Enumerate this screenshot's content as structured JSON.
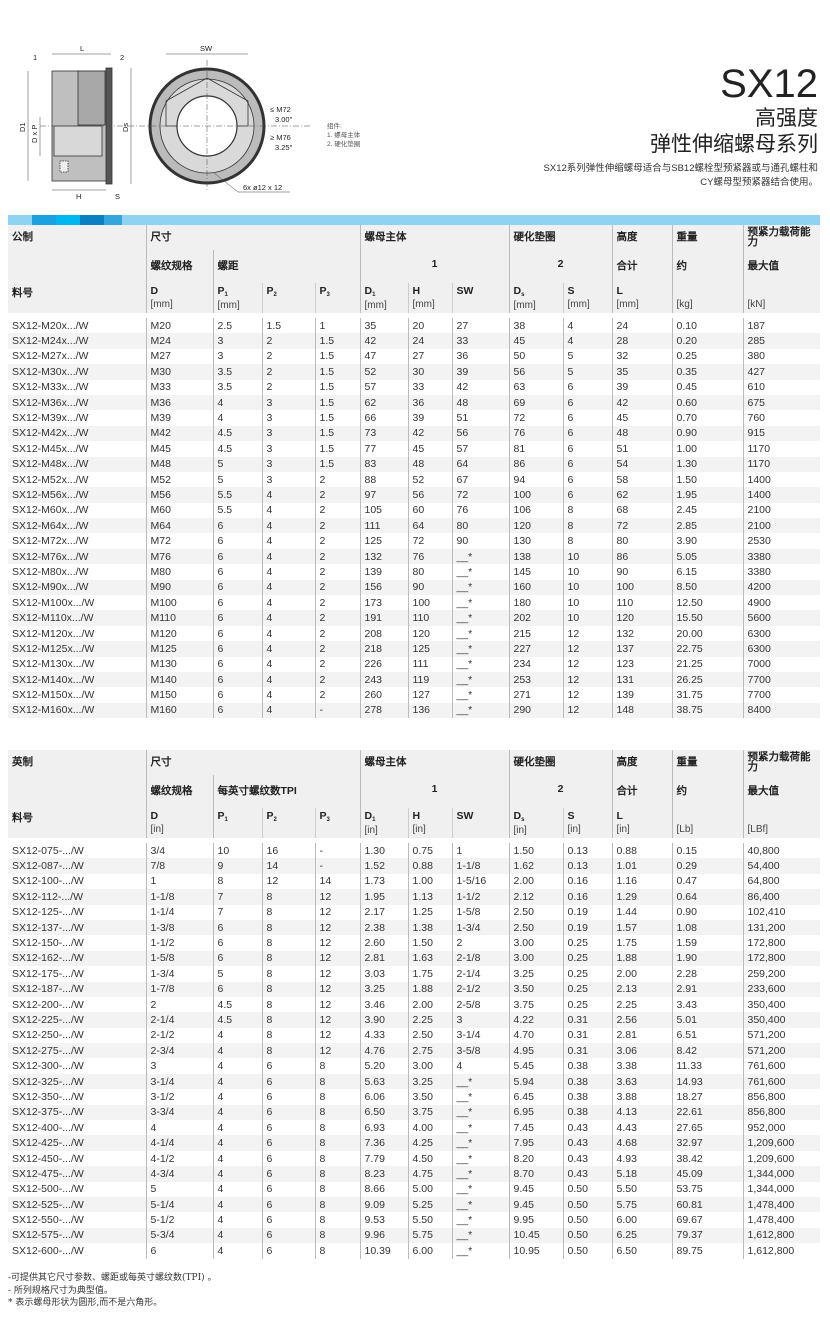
{
  "drawing": {
    "labels": {
      "L": "L",
      "SW": "SW",
      "H": "H",
      "S": "S",
      "D1": "D1",
      "DxP": "D x P",
      "Ds": "Ds",
      "part1": "1",
      "part2": "2",
      "m72": "≤ M72",
      "in300": "3.00\"",
      "m76": "≥ M76",
      "in325": "3.25\"",
      "holes": "6x  ø12 x 12"
    }
  },
  "legend": {
    "title": "组件:",
    "items": [
      "1. 螺母主体",
      "2. 硬化垫圈"
    ]
  },
  "title": {
    "code": "SX12",
    "line1": "高强度",
    "line2": "弹性伸缩螺母系列",
    "desc1": "SX12系列弹性伸缩螺母适合与SB12螺栓型预紧器或与通孔螺柱和",
    "desc2": "CY螺母型预紧器结合使用。"
  },
  "colors": {
    "accent_bar": "#8fd3f2",
    "blocks": [
      "#1aa1e0",
      "#00b8f0",
      "#0a7fc2",
      "#35a6dc"
    ]
  },
  "metric": {
    "h_system": "公制",
    "h_size": "尺寸",
    "h_body": "螺母主体",
    "h_washer": "硬化垫圈",
    "h_height": "高度",
    "h_weight": "重量",
    "h_load": "预紧力载荷能力",
    "h_thread": "螺纹规格",
    "h_pitch": "螺距",
    "h_body_no": "1",
    "h_washer_no": "2",
    "h_total": "合计",
    "h_approx": "约",
    "h_max": "最大值",
    "h_part": "料号",
    "cols": [
      "D",
      "P",
      "P",
      "P",
      "D",
      "H",
      "SW",
      "D",
      "S",
      "L"
    ],
    "units": {
      "D": "[mm]",
      "P1": "[mm]",
      "D1": "[mm]",
      "H": "[mm]",
      "Ds": "[mm]",
      "S": "[mm]",
      "L": "[mm]",
      "w": "[kg]",
      "f": "[kN]"
    },
    "rows": [
      [
        "SX12-M20x.../W",
        "M20",
        "2.5",
        "1.5",
        "1",
        "35",
        "20",
        "27",
        "38",
        "4",
        "24",
        "0.10",
        "187"
      ],
      [
        "SX12-M24x.../W",
        "M24",
        "3",
        "2",
        "1.5",
        "42",
        "24",
        "33",
        "45",
        "4",
        "28",
        "0.20",
        "285"
      ],
      [
        "SX12-M27x.../W",
        "M27",
        "3",
        "2",
        "1.5",
        "47",
        "27",
        "36",
        "50",
        "5",
        "32",
        "0.25",
        "380"
      ],
      [
        "SX12-M30x.../W",
        "M30",
        "3.5",
        "2",
        "1.5",
        "52",
        "30",
        "39",
        "56",
        "5",
        "35",
        "0.35",
        "427"
      ],
      [
        "SX12-M33x.../W",
        "M33",
        "3.5",
        "2",
        "1.5",
        "57",
        "33",
        "42",
        "63",
        "6",
        "39",
        "0.45",
        "610"
      ],
      [
        "SX12-M36x.../W",
        "M36",
        "4",
        "3",
        "1.5",
        "62",
        "36",
        "48",
        "69",
        "6",
        "42",
        "0.60",
        "675"
      ],
      [
        "SX12-M39x.../W",
        "M39",
        "4",
        "3",
        "1.5",
        "66",
        "39",
        "51",
        "72",
        "6",
        "45",
        "0.70",
        "760"
      ],
      [
        "SX12-M42x.../W",
        "M42",
        "4.5",
        "3",
        "1.5",
        "73",
        "42",
        "56",
        "76",
        "6",
        "48",
        "0.90",
        "915"
      ],
      [
        "SX12-M45x.../W",
        "M45",
        "4.5",
        "3",
        "1.5",
        "77",
        "45",
        "57",
        "81",
        "6",
        "51",
        "1.00",
        "1170"
      ],
      [
        "SX12-M48x.../W",
        "M48",
        "5",
        "3",
        "1.5",
        "83",
        "48",
        "64",
        "86",
        "6",
        "54",
        "1.30",
        "1170"
      ],
      [
        "SX12-M52x.../W",
        "M52",
        "5",
        "3",
        "2",
        "88",
        "52",
        "67",
        "94",
        "6",
        "58",
        "1.50",
        "1400"
      ],
      [
        "SX12-M56x.../W",
        "M56",
        "5.5",
        "4",
        "2",
        "97",
        "56",
        "72",
        "100",
        "6",
        "62",
        "1.95",
        "1400"
      ],
      [
        "SX12-M60x.../W",
        "M60",
        "5.5",
        "4",
        "2",
        "105",
        "60",
        "76",
        "106",
        "8",
        "68",
        "2.45",
        "2100"
      ],
      [
        "SX12-M64x.../W",
        "M64",
        "6",
        "4",
        "2",
        "111",
        "64",
        "80",
        "120",
        "8",
        "72",
        "2.85",
        "2100"
      ],
      [
        "SX12-M72x.../W",
        "M72",
        "6",
        "4",
        "2",
        "125",
        "72",
        "90",
        "130",
        "8",
        "80",
        "3.90",
        "2530"
      ],
      [
        "SX12-M76x.../W",
        "M76",
        "6",
        "4",
        "2",
        "132",
        "76",
        "__*",
        "138",
        "10",
        "86",
        "5.05",
        "3380"
      ],
      [
        "SX12-M80x.../W",
        "M80",
        "6",
        "4",
        "2",
        "139",
        "80",
        "__*",
        "145",
        "10",
        "90",
        "6.15",
        "3380"
      ],
      [
        "SX12-M90x.../W",
        "M90",
        "6",
        "4",
        "2",
        "156",
        "90",
        "__*",
        "160",
        "10",
        "100",
        "8.50",
        "4200"
      ],
      [
        "SX12-M100x.../W",
        "M100",
        "6",
        "4",
        "2",
        "173",
        "100",
        "__*",
        "180",
        "10",
        "110",
        "12.50",
        "4900"
      ],
      [
        "SX12-M110x.../W",
        "M110",
        "6",
        "4",
        "2",
        "191",
        "110",
        "__*",
        "202",
        "10",
        "120",
        "15.50",
        "5600"
      ],
      [
        "SX12-M120x.../W",
        "M120",
        "6",
        "4",
        "2",
        "208",
        "120",
        "__*",
        "215",
        "12",
        "132",
        "20.00",
        "6300"
      ],
      [
        "SX12-M125x.../W",
        "M125",
        "6",
        "4",
        "2",
        "218",
        "125",
        "__*",
        "227",
        "12",
        "137",
        "22.75",
        "6300"
      ],
      [
        "SX12-M130x.../W",
        "M130",
        "6",
        "4",
        "2",
        "226",
        "111",
        "__*",
        "234",
        "12",
        "123",
        "21.25",
        "7000"
      ],
      [
        "SX12-M140x.../W",
        "M140",
        "6",
        "4",
        "2",
        "243",
        "119",
        "__*",
        "253",
        "12",
        "131",
        "26.25",
        "7700"
      ],
      [
        "SX12-M150x.../W",
        "M150",
        "6",
        "4",
        "2",
        "260",
        "127",
        "__*",
        "271",
        "12",
        "139",
        "31.75",
        "7700"
      ],
      [
        "SX12-M160x.../W",
        "M160",
        "6",
        "4",
        "-",
        "278",
        "136",
        "__*",
        "290",
        "12",
        "148",
        "38.75",
        "8400"
      ]
    ]
  },
  "imperial": {
    "h_system": "英制",
    "h_size": "尺寸",
    "h_body": "螺母主体",
    "h_washer": "硬化垫圈",
    "h_height": "高度",
    "h_weight": "重量",
    "h_load": "预紧力载荷能力",
    "h_thread": "螺纹规格",
    "h_pitch": "每英寸螺纹数TPI",
    "h_body_no": "1",
    "h_washer_no": "2",
    "h_total": "合计",
    "h_approx": "约",
    "h_max": "最大值",
    "h_part": "料号",
    "cols": [
      "D",
      "P",
      "P",
      "P",
      "D",
      "H",
      "SW",
      "D",
      "S",
      "L"
    ],
    "units": {
      "D": "[in]",
      "P1": "",
      "D1": "[in]",
      "H": "[in]",
      "Ds": "[in]",
      "S": "[in]",
      "L": "[in]",
      "w": "[Lb]",
      "f": "[LBf]"
    },
    "rows": [
      [
        "SX12-075-.../W",
        "3/4",
        "10",
        "16",
        "-",
        "1.30",
        "0.75",
        "1",
        "1.50",
        "0.13",
        "0.88",
        "0.15",
        "40,800"
      ],
      [
        "SX12-087-.../W",
        "7/8",
        "9",
        "14",
        "-",
        "1.52",
        "0.88",
        "1-1/8",
        "1.62",
        "0.13",
        "1.01",
        "0.29",
        "54,400"
      ],
      [
        "SX12-100-.../W",
        "1",
        "8",
        "12",
        "14",
        "1.73",
        "1.00",
        "1-5/16",
        "2.00",
        "0.16",
        "1.16",
        "0.47",
        "64,800"
      ],
      [
        "SX12-112-.../W",
        "1-1/8",
        "7",
        "8",
        "12",
        "1.95",
        "1.13",
        "1-1/2",
        "2.12",
        "0.16",
        "1.29",
        "0.64",
        "86,400"
      ],
      [
        "SX12-125-.../W",
        "1-1/4",
        "7",
        "8",
        "12",
        "2.17",
        "1.25",
        "1-5/8",
        "2.50",
        "0.19",
        "1.44",
        "0.90",
        "102,410"
      ],
      [
        "SX12-137-.../W",
        "1-3/8",
        "6",
        "8",
        "12",
        "2.38",
        "1.38",
        "1-3/4",
        "2.50",
        "0.19",
        "1.57",
        "1.08",
        "131,200"
      ],
      [
        "SX12-150-.../W",
        "1-1/2",
        "6",
        "8",
        "12",
        "2.60",
        "1.50",
        "2",
        "3.00",
        "0.25",
        "1.75",
        "1.59",
        "172,800"
      ],
      [
        "SX12-162-.../W",
        "1-5/8",
        "6",
        "8",
        "12",
        "2.81",
        "1.63",
        "2-1/8",
        "3.00",
        "0.25",
        "1.88",
        "1.90",
        "172,800"
      ],
      [
        "SX12-175-.../W",
        "1-3/4",
        "5",
        "8",
        "12",
        "3.03",
        "1.75",
        "2-1/4",
        "3.25",
        "0.25",
        "2.00",
        "2.28",
        "259,200"
      ],
      [
        "SX12-187-.../W",
        "1-7/8",
        "6",
        "8",
        "12",
        "3.25",
        "1.88",
        "2-1/2",
        "3.50",
        "0.25",
        "2.13",
        "2.91",
        "233,600"
      ],
      [
        "SX12-200-.../W",
        "2",
        "4.5",
        "8",
        "12",
        "3.46",
        "2.00",
        "2-5/8",
        "3.75",
        "0.25",
        "2.25",
        "3.43",
        "350,400"
      ],
      [
        "SX12-225-.../W",
        "2-1/4",
        "4.5",
        "8",
        "12",
        "3.90",
        "2.25",
        "3",
        "4.22",
        "0.31",
        "2.56",
        "5.01",
        "350,400"
      ],
      [
        "SX12-250-.../W",
        "2-1/2",
        "4",
        "8",
        "12",
        "4.33",
        "2.50",
        "3-1/4",
        "4.70",
        "0.31",
        "2.81",
        "6.51",
        "571,200"
      ],
      [
        "SX12-275-.../W",
        "2-3/4",
        "4",
        "8",
        "12",
        "4.76",
        "2.75",
        "3-5/8",
        "4.95",
        "0.31",
        "3.06",
        "8.42",
        "571,200"
      ],
      [
        "SX12-300-.../W",
        "3",
        "4",
        "6",
        "8",
        "5.20",
        "3.00",
        "4",
        "5.45",
        "0.38",
        "3.38",
        "11.33",
        "761,600"
      ],
      [
        "SX12-325-.../W",
        "3-1/4",
        "4",
        "6",
        "8",
        "5.63",
        "3.25",
        "__*",
        "5.94",
        "0.38",
        "3.63",
        "14.93",
        "761,600"
      ],
      [
        "SX12-350-.../W",
        "3-1/2",
        "4",
        "6",
        "8",
        "6.06",
        "3.50",
        "__*",
        "6.45",
        "0.38",
        "3.88",
        "18.27",
        "856,800"
      ],
      [
        "SX12-375-.../W",
        "3-3/4",
        "4",
        "6",
        "8",
        "6.50",
        "3.75",
        "__*",
        "6.95",
        "0.38",
        "4.13",
        "22.61",
        "856,800"
      ],
      [
        "SX12-400-.../W",
        "4",
        "4",
        "6",
        "8",
        "6.93",
        "4.00",
        "__*",
        "7.45",
        "0.43",
        "4.43",
        "27.65",
        "952,000"
      ],
      [
        "SX12-425-.../W",
        "4-1/4",
        "4",
        "6",
        "8",
        "7.36",
        "4.25",
        "__*",
        "7.95",
        "0.43",
        "4.68",
        "32.97",
        "1,209,600"
      ],
      [
        "SX12-450-.../W",
        "4-1/2",
        "4",
        "6",
        "8",
        "7.79",
        "4.50",
        "__*",
        "8.20",
        "0.43",
        "4.93",
        "38.42",
        "1,209,600"
      ],
      [
        "SX12-475-.../W",
        "4-3/4",
        "4",
        "6",
        "8",
        "8.23",
        "4.75",
        "__*",
        "8.70",
        "0.43",
        "5.18",
        "45.09",
        "1,344,000"
      ],
      [
        "SX12-500-.../W",
        "5",
        "4",
        "6",
        "8",
        "8.66",
        "5.00",
        "__*",
        "9.45",
        "0.50",
        "5.50",
        "53.75",
        "1,344,000"
      ],
      [
        "SX12-525-.../W",
        "5-1/4",
        "4",
        "6",
        "8",
        "9.09",
        "5.25",
        "__*",
        "9.45",
        "0.50",
        "5.75",
        "60.81",
        "1,478,400"
      ],
      [
        "SX12-550-.../W",
        "5-1/2",
        "4",
        "6",
        "8",
        "9.53",
        "5.50",
        "__*",
        "9.95",
        "0.50",
        "6.00",
        "69.67",
        "1,478,400"
      ],
      [
        "SX12-575-.../W",
        "5-3/4",
        "4",
        "6",
        "8",
        "9.96",
        "5.75",
        "__*",
        "10.45",
        "0.50",
        "6.25",
        "79.37",
        "1,612,800"
      ],
      [
        "SX12-600-.../W",
        "6",
        "4",
        "6",
        "8",
        "10.39",
        "6.00",
        "__*",
        "10.95",
        "0.50",
        "6.50",
        "89.75",
        "1,612,800"
      ]
    ]
  },
  "notes": [
    "-可提供其它尺寸参数、螺距或每英寸螺纹数(TPI) 。",
    "- 所列规格尺寸为典型值。",
    "* 表示螺母形状为圆形,而不是六角形。"
  ]
}
